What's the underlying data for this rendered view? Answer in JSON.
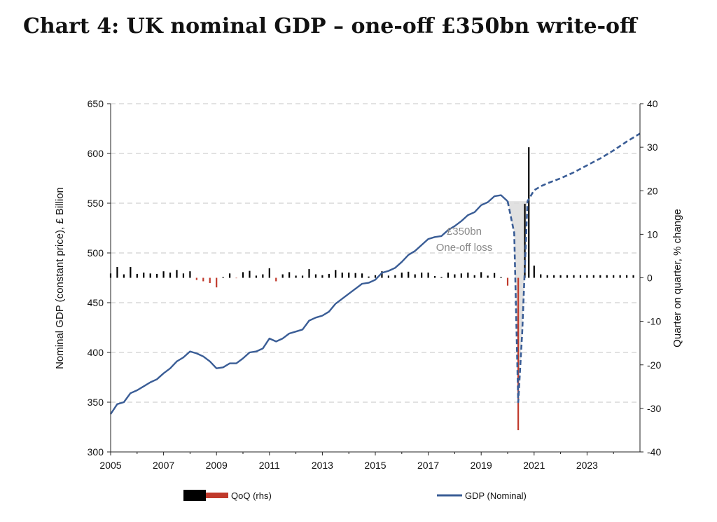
{
  "title": "Chart 4: UK nominal GDP – one-off £350bn write-off",
  "chart_data": {
    "type": "line",
    "ylabel": "Nominal GDP (constant price), £ Billion",
    "y2label": "Quarter on quarter, % change",
    "xlim": [
      2005,
      2025
    ],
    "ylim": [
      300,
      650
    ],
    "y2lim": [
      -40,
      40
    ],
    "x_ticks": [
      "2005",
      "2007",
      "2009",
      "2011",
      "2013",
      "2015",
      "2017",
      "2019",
      "2021",
      "2023"
    ],
    "y_ticks": [
      "650",
      "600",
      "550",
      "500",
      "450",
      "400",
      "350",
      "300"
    ],
    "y2_ticks": [
      "40",
      "30",
      "20",
      "10",
      "0",
      "-10",
      "-20",
      "-30",
      "-40"
    ],
    "grid": true,
    "legend": [
      "QoQ (rhs)",
      "GDP (Nominal)"
    ],
    "colors": {
      "gdp_line": "#3a5d96",
      "qoq_pos": "#000000",
      "qoq_neg": "#c0392b",
      "shade": "#d9d9d9",
      "grid": "#d0d0d0"
    },
    "annotation": {
      "line1": "£350bn",
      "line2": "One-off loss"
    },
    "gdp_actual": [
      [
        2005.0,
        338
      ],
      [
        2005.25,
        348
      ],
      [
        2005.5,
        350
      ],
      [
        2005.75,
        359
      ],
      [
        2006.0,
        362
      ],
      [
        2006.25,
        366
      ],
      [
        2006.5,
        370
      ],
      [
        2006.75,
        373
      ],
      [
        2007.0,
        379
      ],
      [
        2007.25,
        384
      ],
      [
        2007.5,
        391
      ],
      [
        2007.75,
        395
      ],
      [
        2008.0,
        401
      ],
      [
        2008.25,
        399
      ],
      [
        2008.5,
        396
      ],
      [
        2008.75,
        391
      ],
      [
        2009.0,
        384
      ],
      [
        2009.25,
        385
      ],
      [
        2009.5,
        389
      ],
      [
        2009.75,
        389
      ],
      [
        2010.0,
        394
      ],
      [
        2010.25,
        400
      ],
      [
        2010.5,
        401
      ],
      [
        2010.75,
        404
      ],
      [
        2011.0,
        414
      ],
      [
        2011.25,
        411
      ],
      [
        2011.5,
        414
      ],
      [
        2011.75,
        419
      ],
      [
        2012.0,
        421
      ],
      [
        2012.25,
        423
      ],
      [
        2012.5,
        432
      ],
      [
        2012.75,
        435
      ],
      [
        2013.0,
        437
      ],
      [
        2013.25,
        441
      ],
      [
        2013.5,
        449
      ],
      [
        2013.75,
        454
      ],
      [
        2014.0,
        459
      ],
      [
        2014.25,
        464
      ],
      [
        2014.5,
        469
      ],
      [
        2014.75,
        470
      ],
      [
        2015.0,
        473
      ],
      [
        2015.25,
        480
      ],
      [
        2015.5,
        482
      ],
      [
        2015.75,
        485
      ],
      [
        2016.0,
        491
      ],
      [
        2016.25,
        498
      ],
      [
        2016.5,
        502
      ],
      [
        2016.75,
        508
      ],
      [
        2017.0,
        514
      ],
      [
        2017.25,
        516
      ],
      [
        2017.5,
        517
      ],
      [
        2017.75,
        523
      ],
      [
        2018.0,
        527
      ],
      [
        2018.25,
        532
      ],
      [
        2018.5,
        538
      ],
      [
        2018.75,
        541
      ],
      [
        2019.0,
        548
      ],
      [
        2019.25,
        551
      ],
      [
        2019.5,
        557
      ],
      [
        2019.75,
        558
      ],
      [
        2020.0,
        552
      ]
    ],
    "gdp_projection": [
      [
        2020.0,
        552
      ],
      [
        2020.25,
        520
      ],
      [
        2020.4,
        350
      ],
      [
        2020.55,
        420
      ],
      [
        2020.75,
        552
      ],
      [
        2021.0,
        563
      ],
      [
        2021.25,
        567
      ],
      [
        2021.5,
        570
      ],
      [
        2022.0,
        575
      ],
      [
        2022.5,
        581
      ],
      [
        2023.0,
        588
      ],
      [
        2023.5,
        595
      ],
      [
        2024.0,
        603
      ],
      [
        2024.5,
        612
      ],
      [
        2025.0,
        620
      ]
    ],
    "qoq": [
      [
        2005.0,
        1.0
      ],
      [
        2005.25,
        2.5
      ],
      [
        2005.5,
        0.8
      ],
      [
        2005.75,
        2.5
      ],
      [
        2006.0,
        0.9
      ],
      [
        2006.25,
        1.2
      ],
      [
        2006.5,
        1.0
      ],
      [
        2006.75,
        0.9
      ],
      [
        2007.0,
        1.5
      ],
      [
        2007.25,
        1.2
      ],
      [
        2007.5,
        1.8
      ],
      [
        2007.75,
        1.0
      ],
      [
        2008.0,
        1.5
      ],
      [
        2008.25,
        -0.5
      ],
      [
        2008.5,
        -0.8
      ],
      [
        2008.75,
        -1.2
      ],
      [
        2009.0,
        -2.2
      ],
      [
        2009.25,
        0.2
      ],
      [
        2009.5,
        1.0
      ],
      [
        2009.75,
        -0.1
      ],
      [
        2010.0,
        1.3
      ],
      [
        2010.25,
        1.6
      ],
      [
        2010.5,
        0.5
      ],
      [
        2010.75,
        0.8
      ],
      [
        2011.0,
        2.2
      ],
      [
        2011.25,
        -0.8
      ],
      [
        2011.5,
        0.8
      ],
      [
        2011.75,
        1.3
      ],
      [
        2012.0,
        0.5
      ],
      [
        2012.25,
        0.5
      ],
      [
        2012.5,
        2.0
      ],
      [
        2012.75,
        0.8
      ],
      [
        2013.0,
        0.6
      ],
      [
        2013.25,
        0.9
      ],
      [
        2013.5,
        1.8
      ],
      [
        2013.75,
        1.2
      ],
      [
        2014.0,
        1.2
      ],
      [
        2014.25,
        1.1
      ],
      [
        2014.5,
        1.0
      ],
      [
        2014.75,
        0.3
      ],
      [
        2015.0,
        0.6
      ],
      [
        2015.25,
        1.5
      ],
      [
        2015.5,
        0.5
      ],
      [
        2015.75,
        0.6
      ],
      [
        2016.0,
        1.2
      ],
      [
        2016.25,
        1.4
      ],
      [
        2016.5,
        0.8
      ],
      [
        2016.75,
        1.2
      ],
      [
        2017.0,
        1.2
      ],
      [
        2017.25,
        0.4
      ],
      [
        2017.5,
        0.2
      ],
      [
        2017.75,
        1.2
      ],
      [
        2018.0,
        0.8
      ],
      [
        2018.25,
        1.0
      ],
      [
        2018.5,
        1.2
      ],
      [
        2018.75,
        0.6
      ],
      [
        2019.0,
        1.3
      ],
      [
        2019.25,
        0.5
      ],
      [
        2019.5,
        1.1
      ],
      [
        2019.75,
        0.2
      ],
      [
        2020.0,
        -1.8
      ],
      [
        2020.4,
        -35.0
      ],
      [
        2020.65,
        17.0
      ],
      [
        2020.8,
        30.0
      ],
      [
        2021.0,
        2.8
      ],
      [
        2021.25,
        0.8
      ],
      [
        2021.5,
        0.6
      ],
      [
        2021.75,
        0.6
      ],
      [
        2022.0,
        0.6
      ],
      [
        2022.25,
        0.6
      ],
      [
        2022.5,
        0.6
      ],
      [
        2022.75,
        0.6
      ],
      [
        2023.0,
        0.6
      ],
      [
        2023.25,
        0.6
      ],
      [
        2023.5,
        0.6
      ],
      [
        2023.75,
        0.6
      ],
      [
        2024.0,
        0.6
      ],
      [
        2024.25,
        0.6
      ],
      [
        2024.5,
        0.6
      ],
      [
        2024.75,
        0.6
      ]
    ]
  }
}
